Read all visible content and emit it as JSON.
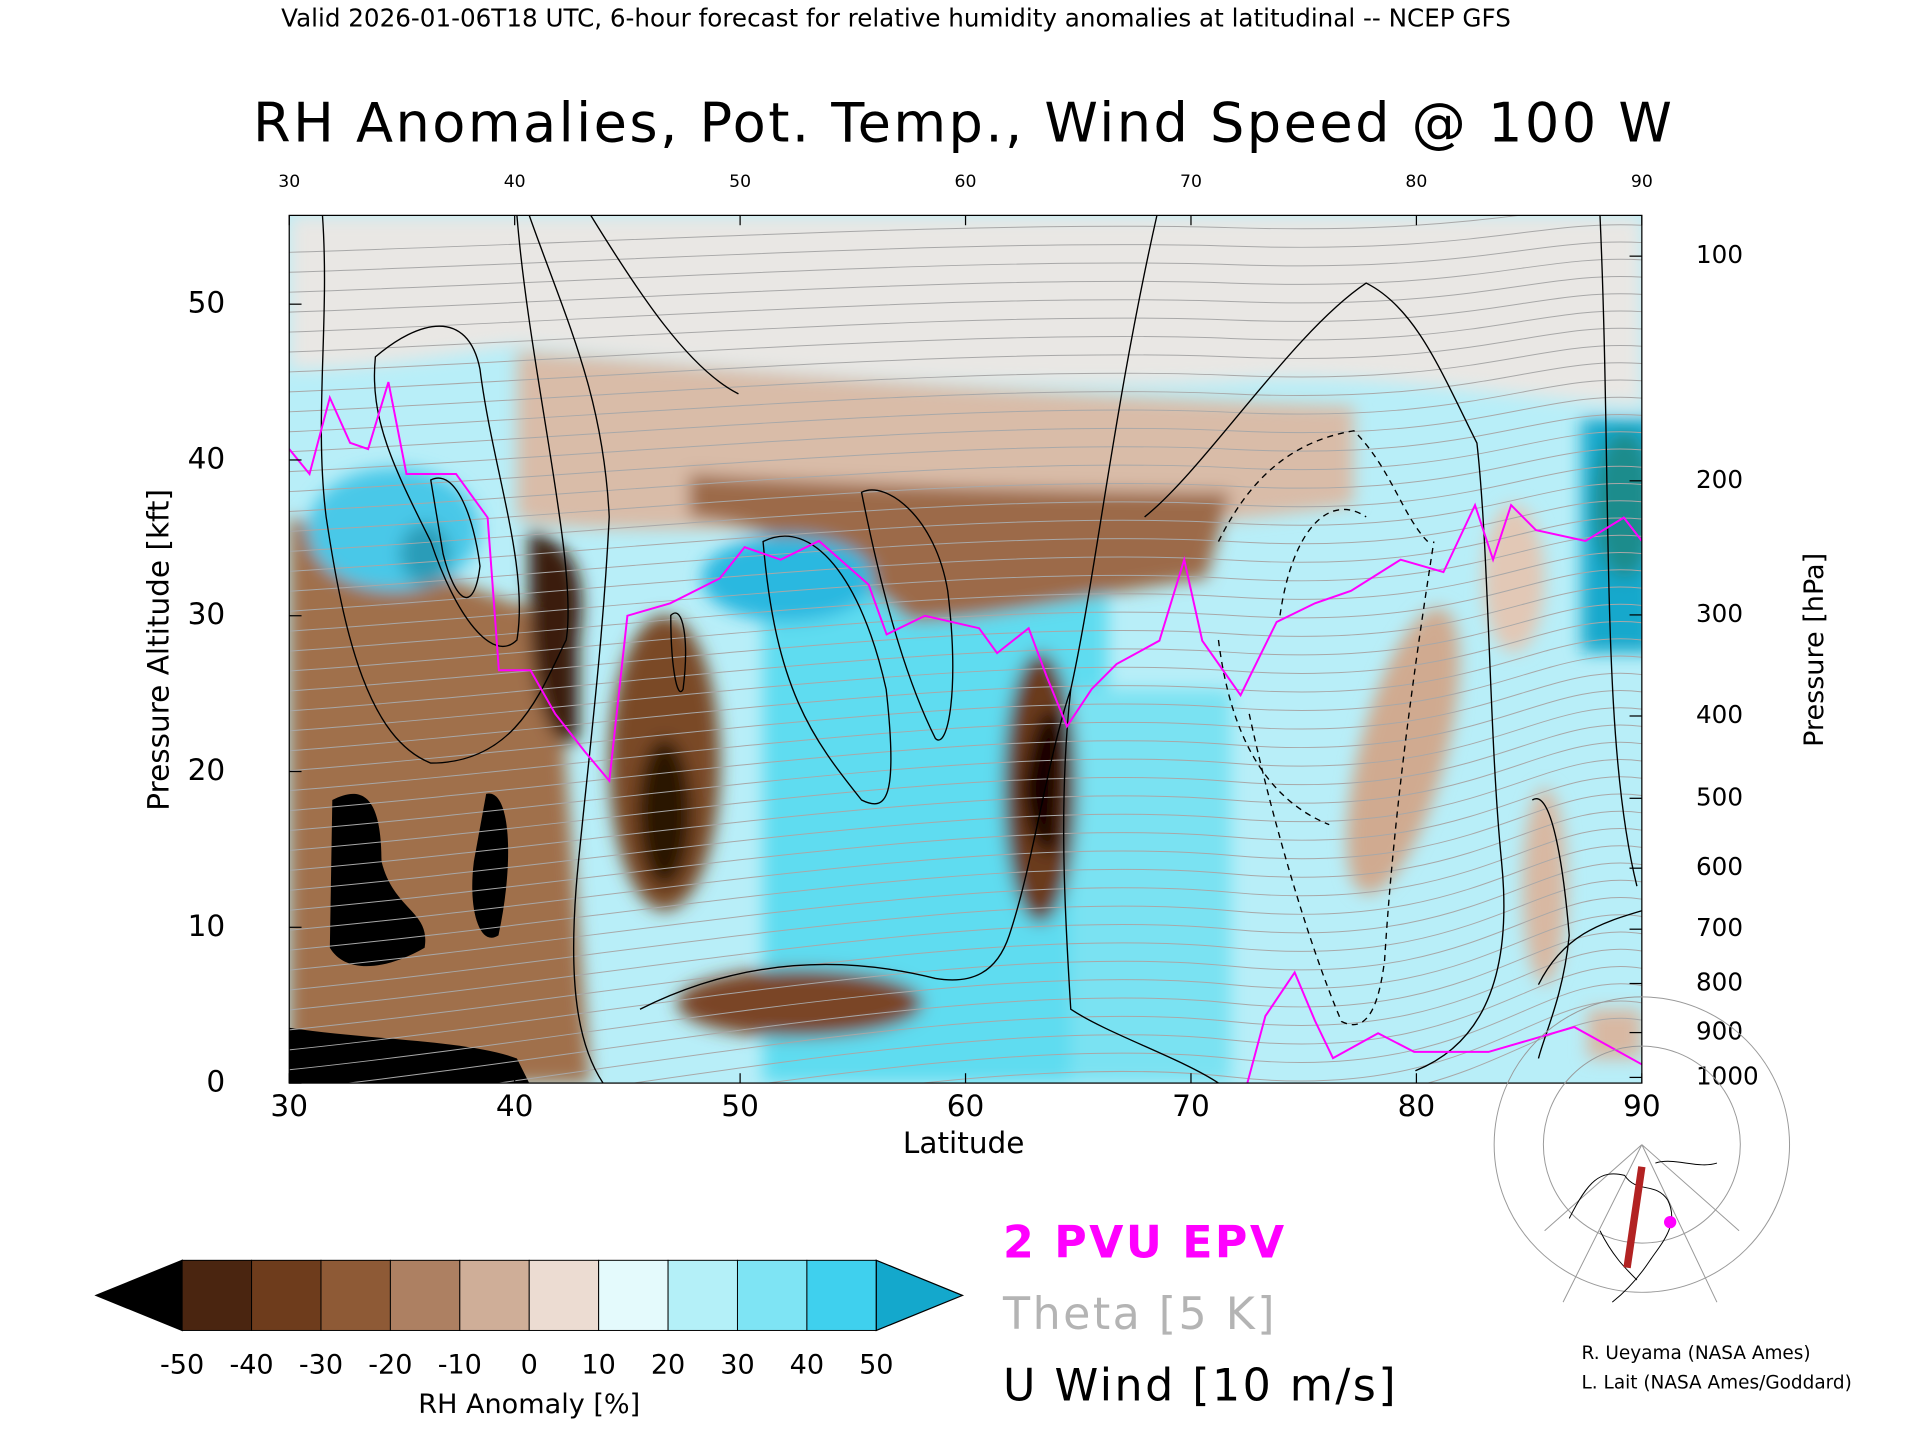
{
  "header": "Valid 2026-01-06T18 UTC, 6-hour forecast for relative humidity anomalies at latitudinal -- NCEP GFS",
  "chart_data": {
    "type": "contour",
    "title": "RH Anomalies, Pot. Temp., Wind Speed @ 100 W",
    "x_label": "Latitude",
    "y_label": "Pressure Altitude [kft]",
    "y2_label": "Pressure [hPa]",
    "xlim": [
      30,
      90
    ],
    "xticks": [
      30,
      40,
      50,
      60,
      70,
      80,
      90
    ],
    "ylim": [
      0,
      55.7
    ],
    "yticks": [
      0,
      10,
      20,
      30,
      40,
      50
    ],
    "y2ticks": [
      100,
      200,
      300,
      400,
      500,
      600,
      700,
      800,
      900,
      1000
    ],
    "series": [
      {
        "name": "2 PVU EPV",
        "color": "#ff00ff",
        "x": [
          30,
          30.9,
          31.8,
          32.7,
          33.5,
          34.4,
          35.2,
          37.4,
          38.8,
          39.3,
          40.7,
          41.8,
          43.1,
          44.2,
          45,
          46.9,
          49.1,
          50.2,
          51.8,
          53.5,
          55.7,
          56.5,
          58.2,
          60.6,
          61.4,
          62.8,
          63.6,
          64.5,
          65.6,
          66.7,
          68.6,
          69.7,
          70.5,
          72.2,
          73.8,
          75.5,
          77.1,
          79.3,
          81.2,
          82.6,
          83.4,
          84.2,
          85.3,
          87.5,
          89.2,
          90,
          null,
          72.5,
          73.3,
          74.6,
          75.5,
          76.3,
          78.3,
          79.9,
          83.2,
          87,
          90
        ],
        "values": [
          40.7,
          39.1,
          44,
          41.1,
          40.7,
          45,
          39.1,
          39.1,
          36.3,
          26.5,
          26.5,
          23.7,
          21.3,
          19.4,
          30,
          30.8,
          32.4,
          34.4,
          33.6,
          34.8,
          32,
          28.8,
          30,
          29.2,
          27.6,
          29.2,
          26.1,
          22.9,
          25.3,
          26.9,
          28.4,
          33.6,
          28.4,
          24.9,
          29.6,
          30.8,
          31.6,
          33.6,
          32.8,
          37.1,
          33.6,
          37.1,
          35.5,
          34.8,
          36.3,
          34.8,
          null,
          0,
          4.3,
          7.1,
          4,
          1.6,
          3.2,
          2,
          2,
          3.6,
          1.2
        ]
      }
    ],
    "colorbar": {
      "label": "RH Anomaly [%]",
      "ticks": [
        -50,
        -40,
        -30,
        -20,
        -10,
        0,
        10,
        20,
        30,
        40,
        50
      ],
      "colors": [
        "#000000",
        "#4a2510",
        "#6e3c1c",
        "#8e5a36",
        "#ad8062",
        "#cfae98",
        "#ecdcd2",
        "#e4fafc",
        "#b4f0f8",
        "#7ee4f4",
        "#3fd0ee",
        "#14a8cc",
        "#1a8c8c"
      ]
    },
    "legend": [
      {
        "label": "2 PVU EPV",
        "color": "#ff00ff"
      },
      {
        "label": "Theta [5 K]",
        "color": "#b4b4b4"
      },
      {
        "label": "U Wind [10 m/s]",
        "color": "#000000"
      }
    ],
    "credits": [
      "R. Ueyama (NASA Ames)",
      "L. Lait (NASA Ames/Goddard)"
    ]
  }
}
